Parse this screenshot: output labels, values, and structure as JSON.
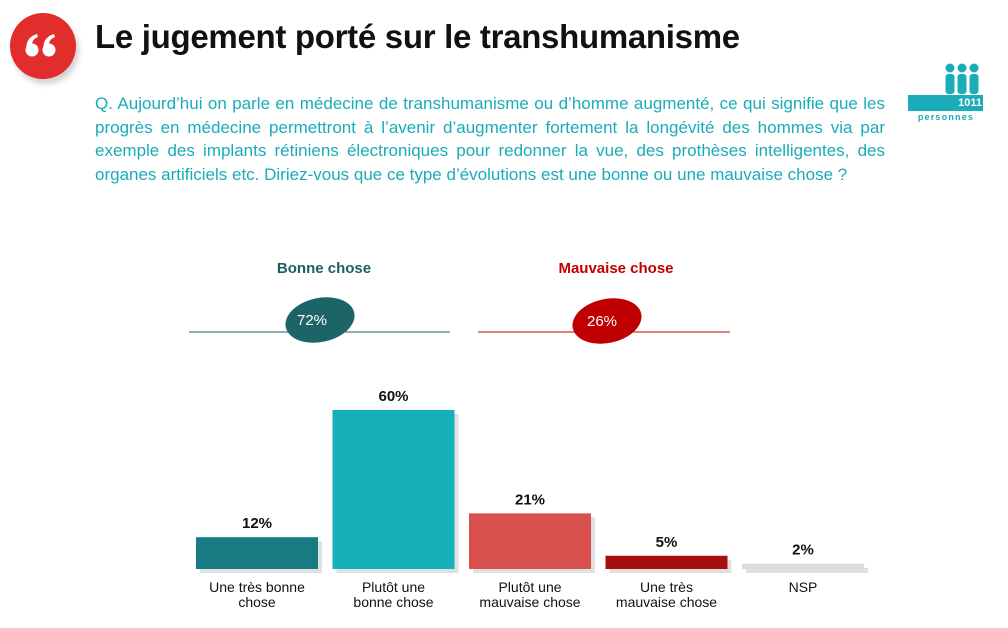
{
  "header": {
    "title": "Le jugement porté sur le transhumanisme",
    "quote_icon": "quote-mark-icon"
  },
  "question": "Q. Aujourd’hui on parle en médecine de transhumanisme ou d’homme augmenté, ce qui signifie que les progrès en médecine permettront à l’avenir d’augmenter fortement la longévité des hommes via par exemple des implants rétiniens électroniques pour redonner la vue, des prothèses intelligentes, des organes artificiels etc. Diriez-vous que ce type d’évolutions est une bonne ou une mauvaise chose ?",
  "sample": {
    "count": "1011",
    "label": "personnes",
    "icon": "people-icon"
  },
  "summary": {
    "good": {
      "label": "Bonne chose",
      "value": "72%",
      "color": "#1d6469"
    },
    "bad": {
      "label": "Mauvaise chose",
      "value": "26%",
      "color": "#c00000"
    }
  },
  "chart_data": {
    "type": "bar",
    "categories": [
      [
        "Une très bonne",
        "chose"
      ],
      [
        "Plutôt une",
        "bonne chose"
      ],
      [
        "Plutôt une",
        "mauvaise chose"
      ],
      [
        "Une très",
        "mauvaise chose"
      ],
      [
        "NSP"
      ]
    ],
    "values": [
      12,
      60,
      21,
      5,
      2
    ],
    "value_labels": [
      "12%",
      "60%",
      "21%",
      "5%",
      "2%"
    ],
    "colors": [
      "#177b84",
      "#15b0b9",
      "#d9514f",
      "#a50f0f",
      "#dcdcdc"
    ],
    "ylim": [
      0,
      60
    ]
  }
}
